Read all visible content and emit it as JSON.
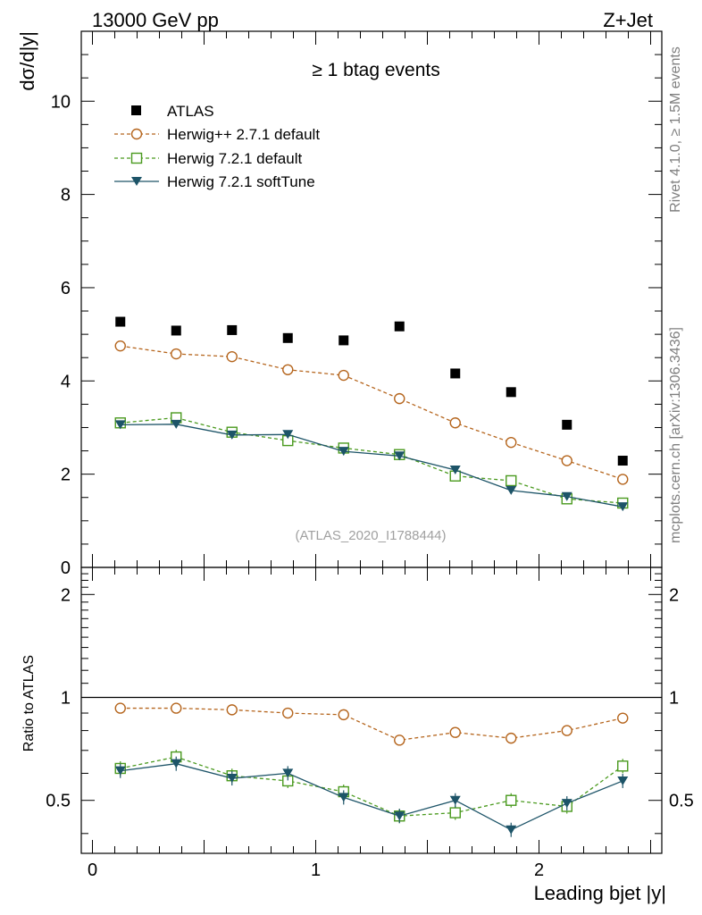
{
  "header": {
    "energy_label": "13000 GeV pp",
    "process_label": "Z+Jet",
    "selection_label": "≥ 1 btag events",
    "analysis_id": "(ATLAS_2020_I1788444)",
    "side_rivet": "Rivet 4.1.0, ≥ 1.5M events",
    "side_mcplots": "mcplots.cern.ch [arXiv:1306.3436]"
  },
  "chart_data": {
    "type": "line",
    "xlabel": "Leading bjet |y|",
    "ylabel_main": "dσ/d|y|",
    "ylabel_ratio": "Ratio to ATLAS",
    "xlim": [
      -0.05,
      2.55
    ],
    "ylim_main": [
      0,
      11.5
    ],
    "ylim_ratio": [
      0.35,
      2.4
    ],
    "ratio_scale": "log",
    "main_ticks": [
      "0",
      "2",
      "4",
      "6",
      "8",
      "10"
    ],
    "main_tick_values": [
      0,
      2,
      4,
      6,
      8,
      10
    ],
    "ratio_ticks_left": [
      "0.5",
      "1",
      "2"
    ],
    "ratio_ticks_right": [
      "0.5",
      "1",
      "2"
    ],
    "ratio_tick_values": [
      0.5,
      1,
      2
    ],
    "x_ticks": [
      "0",
      "1",
      "2"
    ],
    "x_tick_values": [
      0,
      1,
      2
    ],
    "x": [
      0.125,
      0.375,
      0.625,
      0.875,
      1.125,
      1.375,
      1.625,
      1.875,
      2.125,
      2.375
    ],
    "data": {
      "name": "ATLAS",
      "color": "#000000",
      "values": [
        5.27,
        5.08,
        5.09,
        4.92,
        4.87,
        5.17,
        4.16,
        3.76,
        3.06,
        2.29
      ]
    },
    "series": [
      {
        "name": "Herwig++ 2.7.1 default",
        "color": "#b5651d",
        "marker": "open-circle",
        "dashed": true,
        "values": [
          4.75,
          4.58,
          4.52,
          4.24,
          4.12,
          3.62,
          3.1,
          2.68,
          2.29,
          1.89
        ],
        "ratio": [
          0.93,
          0.93,
          0.92,
          0.9,
          0.89,
          0.75,
          0.79,
          0.76,
          0.8,
          0.87
        ]
      },
      {
        "name": "Herwig 7.2.1 default",
        "color": "#4a9a1e",
        "marker": "open-square",
        "dashed": true,
        "values": [
          3.1,
          3.21,
          2.9,
          2.72,
          2.56,
          2.42,
          1.96,
          1.86,
          1.47,
          1.38
        ],
        "ratio": [
          0.62,
          0.67,
          0.59,
          0.57,
          0.53,
          0.45,
          0.46,
          0.5,
          0.48,
          0.63
        ]
      },
      {
        "name": "Herwig 7.2.1 softTune",
        "color": "#1d5468",
        "marker": "filled-triangle-down",
        "dashed": false,
        "values": [
          3.06,
          3.07,
          2.84,
          2.85,
          2.49,
          2.39,
          2.09,
          1.65,
          1.52,
          1.3
        ],
        "ratio": [
          0.61,
          0.64,
          0.58,
          0.6,
          0.51,
          0.45,
          0.5,
          0.41,
          0.49,
          0.57
        ]
      }
    ]
  }
}
